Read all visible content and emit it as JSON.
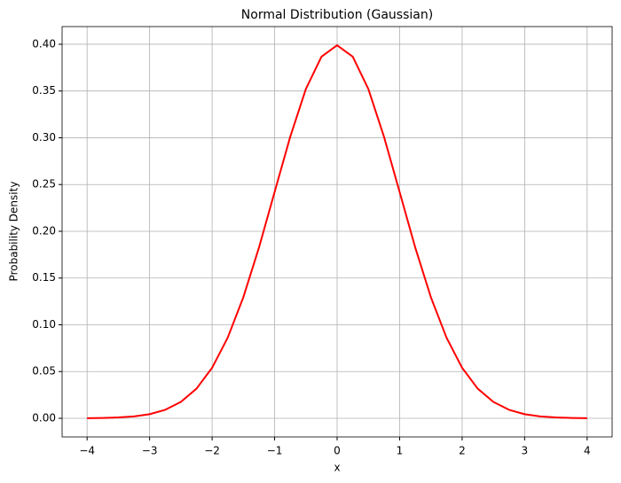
{
  "chart_data": {
    "type": "line",
    "title": "Normal Distribution (Gaussian)",
    "x_label": "x",
    "y_label": "Probability Density",
    "x": [
      -4,
      -3.75,
      -3.5,
      -3.25,
      -3,
      -2.75,
      -2.5,
      -2.25,
      -2,
      -1.75,
      -1.5,
      -1.25,
      -1,
      -0.75,
      -0.5,
      -0.25,
      0,
      0.25,
      0.5,
      0.75,
      1,
      1.25,
      1.5,
      1.75,
      2,
      2.25,
      2.5,
      2.75,
      3,
      3.25,
      3.5,
      3.75,
      4
    ],
    "series": [
      {
        "color": "#ff0000",
        "values": [
          0.0001,
          0.0004,
          0.0009,
          0.002,
          0.0044,
          0.0091,
          0.0175,
          0.0317,
          0.054,
          0.0863,
          0.1295,
          0.1826,
          0.242,
          0.3011,
          0.3521,
          0.3867,
          0.3989,
          0.3867,
          0.3521,
          0.3011,
          0.242,
          0.1826,
          0.1295,
          0.0863,
          0.054,
          0.0317,
          0.0175,
          0.0091,
          0.0044,
          0.002,
          0.0009,
          0.0004,
          0.0001
        ]
      }
    ],
    "xlim": [
      -4.4,
      4.4
    ],
    "ylim": [
      -0.0199,
      0.4189
    ],
    "xticks": [
      {
        "value": -4,
        "label": "−4"
      },
      {
        "value": -3,
        "label": "−3"
      },
      {
        "value": -2,
        "label": "−2"
      },
      {
        "value": -1,
        "label": "−1"
      },
      0,
      1,
      2,
      3,
      4
    ],
    "yticks": [
      {
        "value": 0,
        "label": "0.00"
      },
      {
        "value": 0.05,
        "label": "0.05"
      },
      {
        "value": 0.1,
        "label": "0.10"
      },
      {
        "value": 0.15,
        "label": "0.15"
      },
      {
        "value": 0.2,
        "label": "0.20"
      },
      {
        "value": 0.25,
        "label": "0.25"
      },
      {
        "value": 0.3,
        "label": "0.30"
      },
      {
        "value": 0.35,
        "label": "0.35"
      },
      {
        "value": 0.4,
        "label": "0.40"
      }
    ],
    "grid": true
  }
}
